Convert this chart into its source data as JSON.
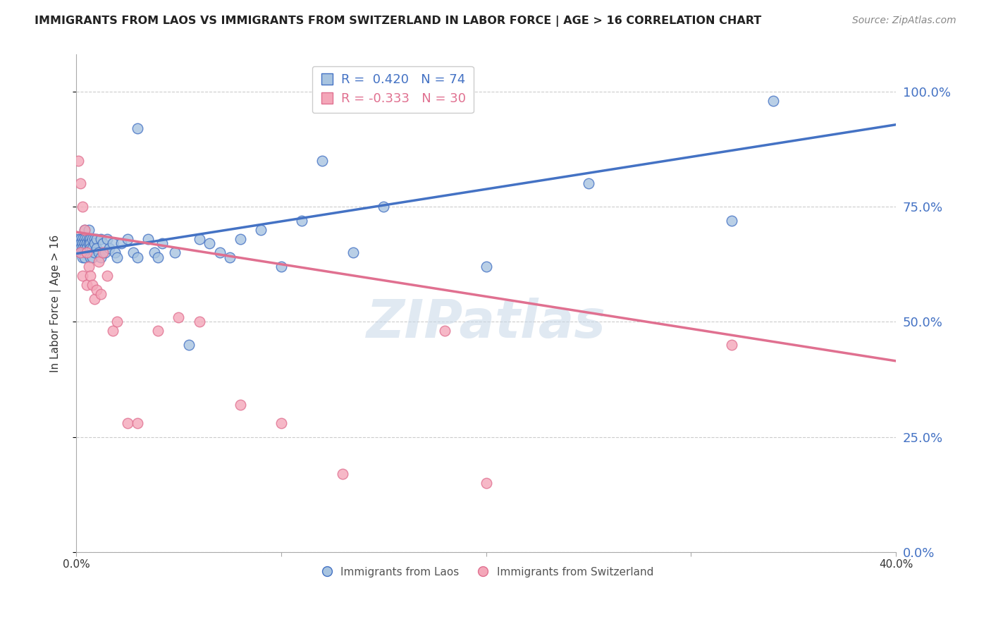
{
  "title": "IMMIGRANTS FROM LAOS VS IMMIGRANTS FROM SWITZERLAND IN LABOR FORCE | AGE > 16 CORRELATION CHART",
  "source": "Source: ZipAtlas.com",
  "ylabel": "In Labor Force | Age > 16",
  "r_laos": 0.42,
  "n_laos": 74,
  "r_swiss": -0.333,
  "n_swiss": 30,
  "laos_color": "#a8c4e0",
  "swiss_color": "#f4a7b9",
  "laos_line_color": "#4472c4",
  "swiss_line_color": "#e07090",
  "right_axis_color": "#4472c4",
  "title_color": "#222222",
  "source_color": "#888888",
  "watermark": "ZIPatlas",
  "yticks": [
    0.0,
    0.25,
    0.5,
    0.75,
    1.0
  ],
  "ytick_labels_right": [
    "0.0%",
    "25.0%",
    "50.0%",
    "75.0%",
    "100.0%"
  ],
  "xlim": [
    0.0,
    0.4
  ],
  "ylim": [
    0.0,
    1.08
  ],
  "laos_x": [
    0.001,
    0.001,
    0.001,
    0.002,
    0.002,
    0.002,
    0.002,
    0.003,
    0.003,
    0.003,
    0.003,
    0.003,
    0.004,
    0.004,
    0.004,
    0.004,
    0.004,
    0.004,
    0.005,
    0.005,
    0.005,
    0.005,
    0.006,
    0.006,
    0.006,
    0.006,
    0.007,
    0.007,
    0.007,
    0.007,
    0.008,
    0.008,
    0.008,
    0.009,
    0.009,
    0.009,
    0.01,
    0.01,
    0.011,
    0.012,
    0.012,
    0.013,
    0.014,
    0.015,
    0.016,
    0.018,
    0.019,
    0.02,
    0.022,
    0.025,
    0.028,
    0.03,
    0.03,
    0.035,
    0.038,
    0.04,
    0.042,
    0.048,
    0.055,
    0.06,
    0.065,
    0.07,
    0.075,
    0.08,
    0.09,
    0.1,
    0.11,
    0.12,
    0.135,
    0.15,
    0.2,
    0.25,
    0.32,
    0.34
  ],
  "laos_y": [
    0.68,
    0.67,
    0.66,
    0.68,
    0.67,
    0.66,
    0.65,
    0.68,
    0.67,
    0.66,
    0.65,
    0.64,
    0.7,
    0.68,
    0.67,
    0.66,
    0.65,
    0.64,
    0.68,
    0.67,
    0.66,
    0.65,
    0.7,
    0.68,
    0.67,
    0.65,
    0.68,
    0.67,
    0.66,
    0.64,
    0.68,
    0.66,
    0.64,
    0.68,
    0.67,
    0.65,
    0.68,
    0.66,
    0.65,
    0.68,
    0.64,
    0.67,
    0.65,
    0.68,
    0.66,
    0.67,
    0.65,
    0.64,
    0.67,
    0.68,
    0.65,
    0.64,
    0.92,
    0.68,
    0.65,
    0.64,
    0.67,
    0.65,
    0.45,
    0.68,
    0.67,
    0.65,
    0.64,
    0.68,
    0.7,
    0.62,
    0.72,
    0.85,
    0.65,
    0.75,
    0.62,
    0.8,
    0.72,
    0.98
  ],
  "swiss_x": [
    0.001,
    0.002,
    0.002,
    0.003,
    0.003,
    0.004,
    0.005,
    0.005,
    0.006,
    0.007,
    0.008,
    0.009,
    0.01,
    0.011,
    0.012,
    0.013,
    0.015,
    0.018,
    0.02,
    0.025,
    0.03,
    0.04,
    0.05,
    0.06,
    0.08,
    0.1,
    0.13,
    0.18,
    0.2,
    0.32
  ],
  "swiss_y": [
    0.85,
    0.8,
    0.65,
    0.75,
    0.6,
    0.7,
    0.65,
    0.58,
    0.62,
    0.6,
    0.58,
    0.55,
    0.57,
    0.63,
    0.56,
    0.65,
    0.6,
    0.48,
    0.5,
    0.28,
    0.28,
    0.48,
    0.51,
    0.5,
    0.32,
    0.28,
    0.17,
    0.48,
    0.15,
    0.45
  ],
  "laos_trend_x": [
    0.0,
    0.4
  ],
  "laos_trend_y": [
    0.648,
    0.928
  ],
  "swiss_trend_x": [
    0.0,
    0.4
  ],
  "swiss_trend_y": [
    0.695,
    0.415
  ]
}
